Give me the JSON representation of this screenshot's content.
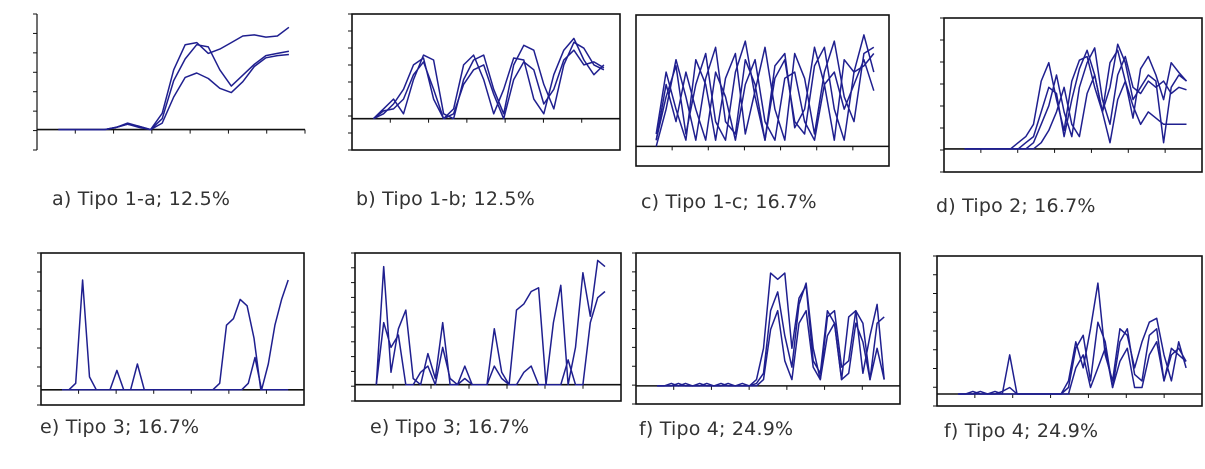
{
  "colors": {
    "line": "#1f1f8f",
    "frame": "#111111"
  },
  "chart_data": [
    {
      "type": "line",
      "caption": "a) Tipo 1-a; 12.5%",
      "series_count": 3,
      "series": [
        {
          "y": [
            0,
            0,
            0,
            0,
            0,
            0.02,
            0.05,
            0.03,
            0,
            0.15,
            0.55,
            0.78,
            0.8,
            0.7,
            0.74,
            0.8,
            0.86,
            0.87,
            0.85,
            0.86,
            0.94
          ]
        },
        {
          "y": [
            0,
            0,
            0,
            0,
            0,
            0.02,
            0.06,
            0.03,
            0,
            0.1,
            0.45,
            0.65,
            0.78,
            0.76,
            0.55,
            0.4,
            0.5,
            0.6,
            0.68,
            0.7,
            0.72
          ]
        },
        {
          "y": [
            0,
            0,
            0,
            0,
            0,
            0.02,
            0.05,
            0.02,
            0,
            0.06,
            0.3,
            0.48,
            0.52,
            0.47,
            0.38,
            0.34,
            0.44,
            0.58,
            0.66,
            0.68,
            0.69
          ]
        }
      ]
    },
    {
      "type": "line",
      "caption": "b) Tipo 1-b; 12.5%",
      "series_count": 3,
      "series": [
        {
          "y": [
            0,
            0.1,
            0.2,
            0.05,
            0.4,
            0.65,
            0.6,
            0.05,
            0,
            0.4,
            0.6,
            0.65,
            0.3,
            0.05,
            0.55,
            0.75,
            0.7,
            0.35,
            0.1,
            0.55,
            0.78,
            0.72,
            0.55,
            0.5
          ]
        },
        {
          "y": [
            0,
            0.05,
            0.15,
            0.3,
            0.55,
            0.62,
            0.2,
            0,
            0.1,
            0.55,
            0.65,
            0.4,
            0.05,
            0.3,
            0.62,
            0.6,
            0.2,
            0.05,
            0.45,
            0.7,
            0.82,
            0.6,
            0.45,
            0.55
          ]
        },
        {
          "y": [
            0,
            0.08,
            0.1,
            0.2,
            0.45,
            0.58,
            0.3,
            0,
            0.05,
            0.35,
            0.5,
            0.55,
            0.25,
            0,
            0.4,
            0.58,
            0.5,
            0.15,
            0.3,
            0.6,
            0.7,
            0.55,
            0.58,
            0.52
          ]
        }
      ]
    },
    {
      "type": "line",
      "caption": "c) Tipo 1-c; 16.7%",
      "series_count": 4,
      "series": [
        {
          "y": [
            0.05,
            0.4,
            0.65,
            0.1,
            0.5,
            0.75,
            0.2,
            0.05,
            0.6,
            0.85,
            0.4,
            0.05,
            0.55,
            0.7,
            0.2,
            0.1,
            0.65,
            0.8,
            0.3,
            0.05,
            0.6,
            0.9,
            0.6
          ]
        },
        {
          "y": [
            0.1,
            0.6,
            0.3,
            0.05,
            0.7,
            0.5,
            0.05,
            0.55,
            0.75,
            0.1,
            0.45,
            0.8,
            0.3,
            0.05,
            0.75,
            0.55,
            0.1,
            0.6,
            0.85,
            0.4,
            0.2,
            0.75,
            0.8
          ]
        },
        {
          "y": [
            0,
            0.3,
            0.7,
            0.4,
            0.05,
            0.55,
            0.8,
            0.2,
            0.1,
            0.7,
            0.5,
            0.05,
            0.65,
            0.75,
            0.15,
            0.3,
            0.8,
            0.5,
            0.05,
            0.7,
            0.6,
            0.65,
            0.75
          ]
        },
        {
          "y": [
            0.05,
            0.5,
            0.2,
            0.6,
            0.3,
            0.05,
            0.6,
            0.4,
            0.05,
            0.5,
            0.7,
            0.2,
            0.05,
            0.55,
            0.6,
            0.2,
            0.05,
            0.5,
            0.6,
            0.3,
            0.5,
            0.7,
            0.45
          ]
        }
      ]
    },
    {
      "type": "line",
      "caption": "d) Tipo 2; 16.7%",
      "series_count": 4,
      "series": [
        {
          "y": [
            0,
            0,
            0,
            0,
            0,
            0,
            0,
            0.05,
            0.1,
            0.2,
            0.55,
            0.7,
            0.4,
            0.15,
            0.55,
            0.72,
            0.75,
            0.5,
            0.3,
            0.7,
            0.8,
            0.55,
            0.25,
            0.65,
            0.75,
            0.6,
            0.4,
            0.7,
            0.62,
            0.55
          ]
        },
        {
          "y": [
            0,
            0,
            0,
            0,
            0,
            0,
            0,
            0,
            0.05,
            0.1,
            0.3,
            0.5,
            0.45,
            0.1,
            0.4,
            0.65,
            0.8,
            0.6,
            0.3,
            0.5,
            0.85,
            0.7,
            0.4,
            0.5,
            0.6,
            0.55,
            0.05,
            0.5,
            0.6,
            0.55
          ]
        },
        {
          "y": [
            0,
            0,
            0,
            0,
            0,
            0,
            0,
            0,
            0,
            0.05,
            0.2,
            0.35,
            0.6,
            0.3,
            0.1,
            0.5,
            0.7,
            0.82,
            0.4,
            0.2,
            0.6,
            0.75,
            0.5,
            0.45,
            0.55,
            0.5,
            0.55,
            0.45,
            0.5,
            0.48
          ]
        },
        {
          "y": [
            0,
            0,
            0,
            0,
            0,
            0,
            0,
            0,
            0,
            0,
            0.05,
            0.15,
            0.3,
            0.5,
            0.2,
            0.1,
            0.45,
            0.6,
            0.3,
            0.05,
            0.4,
            0.55,
            0.35,
            0.2,
            0.3,
            0.25,
            0.2,
            0.2,
            0.2,
            0.2
          ]
        }
      ]
    },
    {
      "type": "line",
      "caption": "e) Tipo 3; 16.7%",
      "series_count": 2,
      "series": [
        {
          "y": [
            0,
            0,
            0.05,
            0.85,
            0.1,
            0,
            0,
            0,
            0.15,
            0,
            0,
            0.2,
            0,
            0,
            0,
            0,
            0,
            0,
            0,
            0,
            0,
            0,
            0,
            0.05,
            0.5,
            0.55,
            0.7,
            0.65,
            0.4,
            0,
            0,
            0,
            0,
            0
          ]
        },
        {
          "y": [
            0,
            0,
            0,
            0,
            0,
            0,
            0,
            0,
            0,
            0,
            0,
            0,
            0,
            0,
            0,
            0,
            0,
            0,
            0,
            0,
            0,
            0,
            0,
            0,
            0,
            0,
            0,
            0,
            0.05,
            0.25,
            0,
            0.2,
            0.5,
            0.7,
            0.85
          ]
        }
      ]
    },
    {
      "type": "line",
      "caption": "e) Tipo 3; 16.7%",
      "series_count": 2,
      "series": [
        {
          "y": [
            0,
            0.95,
            0.1,
            0.45,
            0.6,
            0.05,
            0,
            0.25,
            0.05,
            0.5,
            0,
            0,
            0.15,
            0,
            0,
            0,
            0.45,
            0.1,
            0,
            0.6,
            0.65,
            0.75,
            0.78,
            0,
            0,
            0,
            0.2,
            0,
            0,
            0.5,
            0.7,
            0.75
          ]
        },
        {
          "y": [
            0,
            0.5,
            0.3,
            0.4,
            0,
            0,
            0.1,
            0.15,
            0,
            0.3,
            0.05,
            0,
            0.05,
            0,
            0,
            0,
            0.15,
            0.05,
            0,
            0,
            0.1,
            0.15,
            0,
            0,
            0.5,
            0.8,
            0,
            0.3,
            0.9,
            0.55,
            1.0,
            0.95
          ]
        }
      ]
    },
    {
      "type": "line",
      "caption": "f) Tipo 4; 24.9%",
      "series_count": 3,
      "series": [
        {
          "y": [
            0,
            0,
            0.02,
            0,
            0.02,
            0,
            0,
            0.02,
            0,
            0,
            0.02,
            0,
            0,
            0,
            0.05,
            0.3,
            0.9,
            0.85,
            0.9,
            0.3,
            0.7,
            0.8,
            0.2,
            0.1,
            0.6,
            0.5,
            0.05,
            0.55,
            0.6,
            0.1,
            0.4,
            0.65,
            0.05
          ]
        },
        {
          "y": [
            0,
            0,
            0,
            0.02,
            0,
            0,
            0.02,
            0,
            0,
            0.02,
            0,
            0,
            0.02,
            0,
            0.02,
            0.1,
            0.6,
            0.75,
            0.4,
            0.15,
            0.65,
            0.82,
            0.3,
            0.05,
            0.55,
            0.6,
            0.15,
            0.2,
            0.6,
            0.5,
            0.05,
            0.5,
            0.55
          ]
        },
        {
          "y": [
            0,
            0,
            0,
            0,
            0,
            0,
            0,
            0,
            0,
            0,
            0,
            0,
            0,
            0,
            0,
            0.05,
            0.45,
            0.6,
            0.2,
            0.05,
            0.5,
            0.6,
            0.15,
            0.05,
            0.4,
            0.5,
            0.05,
            0.1,
            0.5,
            0.35,
            0.05,
            0.3,
            0.05
          ]
        }
      ]
    },
    {
      "type": "line",
      "caption": "f) Tipo 4; 24.9%",
      "series_count": 3,
      "series": [
        {
          "y": [
            0,
            0,
            0.02,
            0,
            0,
            0.02,
            0,
            0.3,
            0,
            0,
            0,
            0,
            0,
            0,
            0,
            0.1,
            0.4,
            0.2,
            0.5,
            0.85,
            0.3,
            0.1,
            0.5,
            0.45,
            0.2,
            0.4,
            0.55,
            0.58,
            0.3,
            0.1,
            0.4,
            0.2
          ]
        },
        {
          "y": [
            0,
            0,
            0,
            0.02,
            0,
            0,
            0.02,
            0.05,
            0,
            0,
            0,
            0,
            0,
            0,
            0,
            0.05,
            0.35,
            0.45,
            0.1,
            0.55,
            0.4,
            0.05,
            0.4,
            0.5,
            0.15,
            0.1,
            0.45,
            0.5,
            0.1,
            0.35,
            0.3,
            0.25
          ]
        },
        {
          "y": [
            0,
            0,
            0,
            0,
            0,
            0,
            0,
            0,
            0,
            0,
            0,
            0,
            0,
            0,
            0,
            0,
            0.2,
            0.3,
            0.05,
            0.2,
            0.35,
            0.05,
            0.25,
            0.35,
            0.05,
            0.05,
            0.3,
            0.4,
            0.1,
            0.3,
            0.35,
            0.25
          ]
        }
      ]
    }
  ]
}
